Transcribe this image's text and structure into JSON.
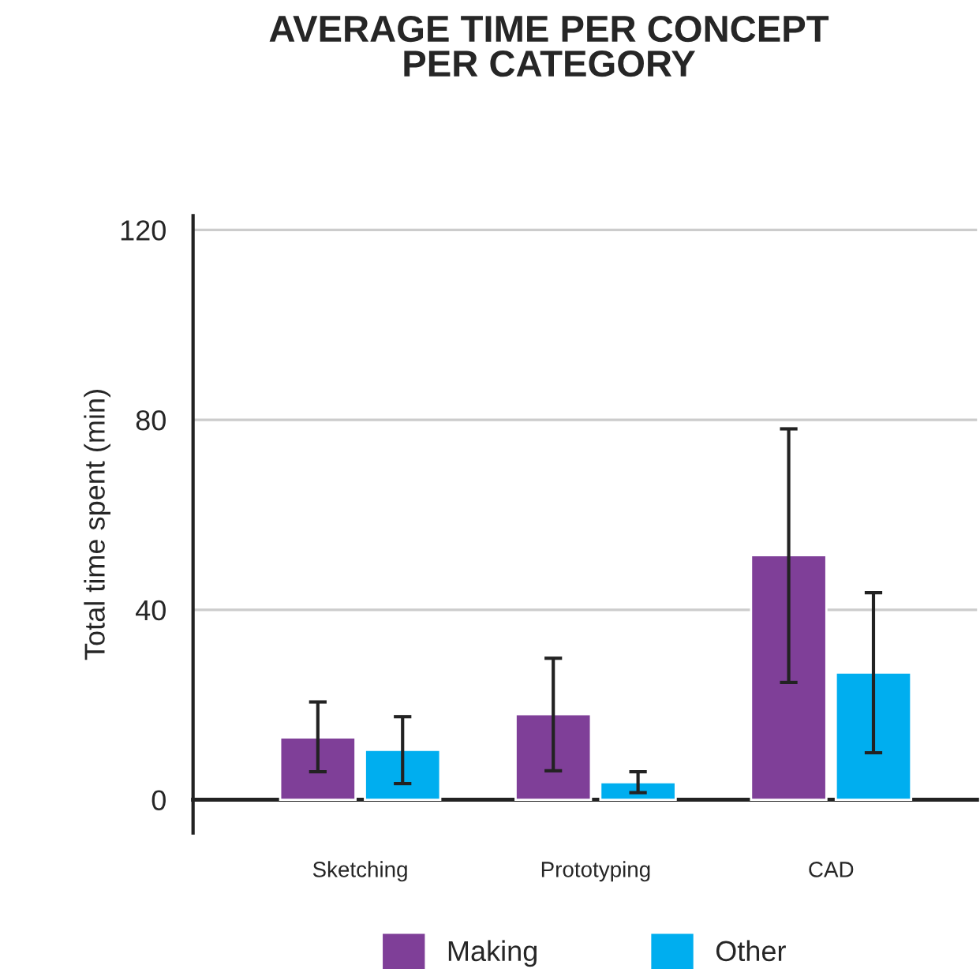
{
  "chart_data": {
    "type": "bar",
    "title": "AVERAGE TIME PER CONCEPT\nPER CATEGORY",
    "ylabel": "Total time spent (min)",
    "categories": [
      "Sketching",
      "Prototyping",
      "CAD"
    ],
    "series": [
      {
        "name": "Making",
        "color": "#7f3f98",
        "values": [
          13.1,
          18,
          51.5
        ],
        "errors": [
          [
            5.9,
            20.6
          ],
          [
            6.1,
            29.8
          ],
          [
            24.7,
            78.1
          ]
        ]
      },
      {
        "name": "Other",
        "color": "#00aeef",
        "values": [
          10.5,
          3.7,
          26.8
        ],
        "errors": [
          [
            3.4,
            17.5
          ],
          [
            1.5,
            5.9
          ],
          [
            9.9,
            43.6
          ]
        ]
      }
    ],
    "ylim": [
      -7,
      123
    ],
    "yticks": [
      0,
      40,
      80,
      120
    ],
    "grid": "y",
    "legend": "bottom"
  }
}
